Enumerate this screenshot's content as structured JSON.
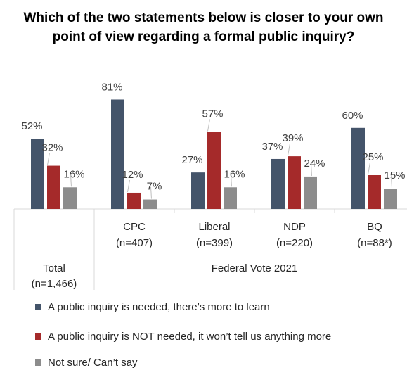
{
  "chart_data": {
    "type": "bar",
    "title": "Which of the two statements below is closer to your own point of view regarding a formal public inquiry?",
    "categories": [
      {
        "name": "Total",
        "n": "(n=1,466)"
      },
      {
        "name": "CPC",
        "n": "(n=407)"
      },
      {
        "name": "Liberal",
        "n": "(n=399)"
      },
      {
        "name": "NDP",
        "n": "(n=220)"
      },
      {
        "name": "BQ",
        "n": "(n=88*)"
      }
    ],
    "group_label": "Federal Vote 2021",
    "series": [
      {
        "name": "A public inquiry is needed, there’s more to learn",
        "color": "#44546A",
        "values": [
          52,
          81,
          27,
          37,
          60
        ]
      },
      {
        "name": "A public inquiry is NOT needed, it won’t tell us anything more",
        "color": "#A52A2A",
        "values": [
          32,
          12,
          57,
          39,
          25
        ]
      },
      {
        "name": "Not sure/ Can’t say",
        "color": "#8C8C8C",
        "values": [
          16,
          7,
          16,
          24,
          15
        ]
      }
    ],
    "value_suffix": "%",
    "ylim": [
      0,
      90
    ],
    "legend_position": "bottom"
  }
}
